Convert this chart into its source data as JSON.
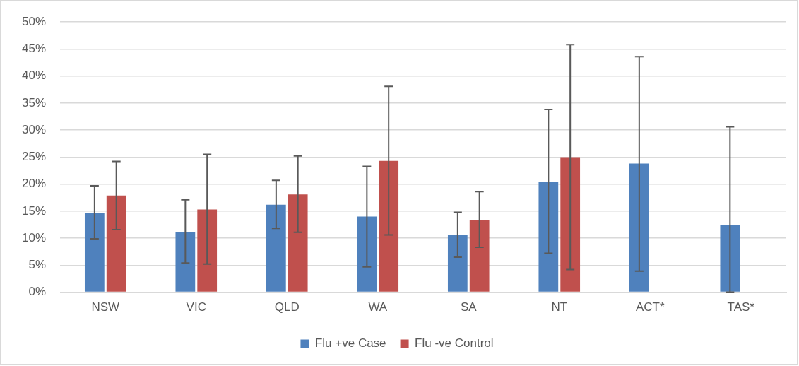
{
  "chart_data": {
    "type": "bar",
    "categories": [
      "NSW",
      "VIC",
      "QLD",
      "WA",
      "SA",
      "NT",
      "ACT*",
      "TAS*"
    ],
    "series": [
      {
        "name": "Flu +ve Case",
        "color": "#4f81bd",
        "values": [
          14.7,
          11.2,
          16.2,
          14.0,
          10.6,
          20.4,
          23.8,
          12.4
        ],
        "errors": [
          [
            9.9,
            19.7
          ],
          [
            5.4,
            17.1
          ],
          [
            11.8,
            20.7
          ],
          [
            4.7,
            23.3
          ],
          [
            6.5,
            14.8
          ],
          [
            7.2,
            33.8
          ],
          [
            3.9,
            43.6
          ],
          [
            0,
            30.6
          ]
        ]
      },
      {
        "name": "Flu -ve Control",
        "color": "#c0504d",
        "values": [
          17.9,
          15.3,
          18.1,
          24.3,
          13.4,
          25.0,
          0,
          0
        ],
        "errors": [
          [
            11.6,
            24.2
          ],
          [
            5.2,
            25.5
          ],
          [
            11.1,
            25.2
          ],
          [
            10.6,
            38.1
          ],
          [
            8.3,
            18.6
          ],
          [
            4.2,
            45.8
          ],
          null,
          null
        ]
      }
    ],
    "ylim": [
      0,
      50
    ],
    "yticks": [
      {
        "value": 0,
        "label": "0%"
      },
      {
        "value": 5,
        "label": "5%"
      },
      {
        "value": 10,
        "label": "10%"
      },
      {
        "value": 15,
        "label": "15%"
      },
      {
        "value": 20,
        "label": "20%"
      },
      {
        "value": 25,
        "label": "25%"
      },
      {
        "value": 30,
        "label": "30%"
      },
      {
        "value": 35,
        "label": "35%"
      },
      {
        "value": 40,
        "label": "40%"
      },
      {
        "value": 45,
        "label": "45%"
      },
      {
        "value": 50,
        "label": "50%"
      }
    ],
    "grid": "y",
    "legend": "bottom"
  }
}
